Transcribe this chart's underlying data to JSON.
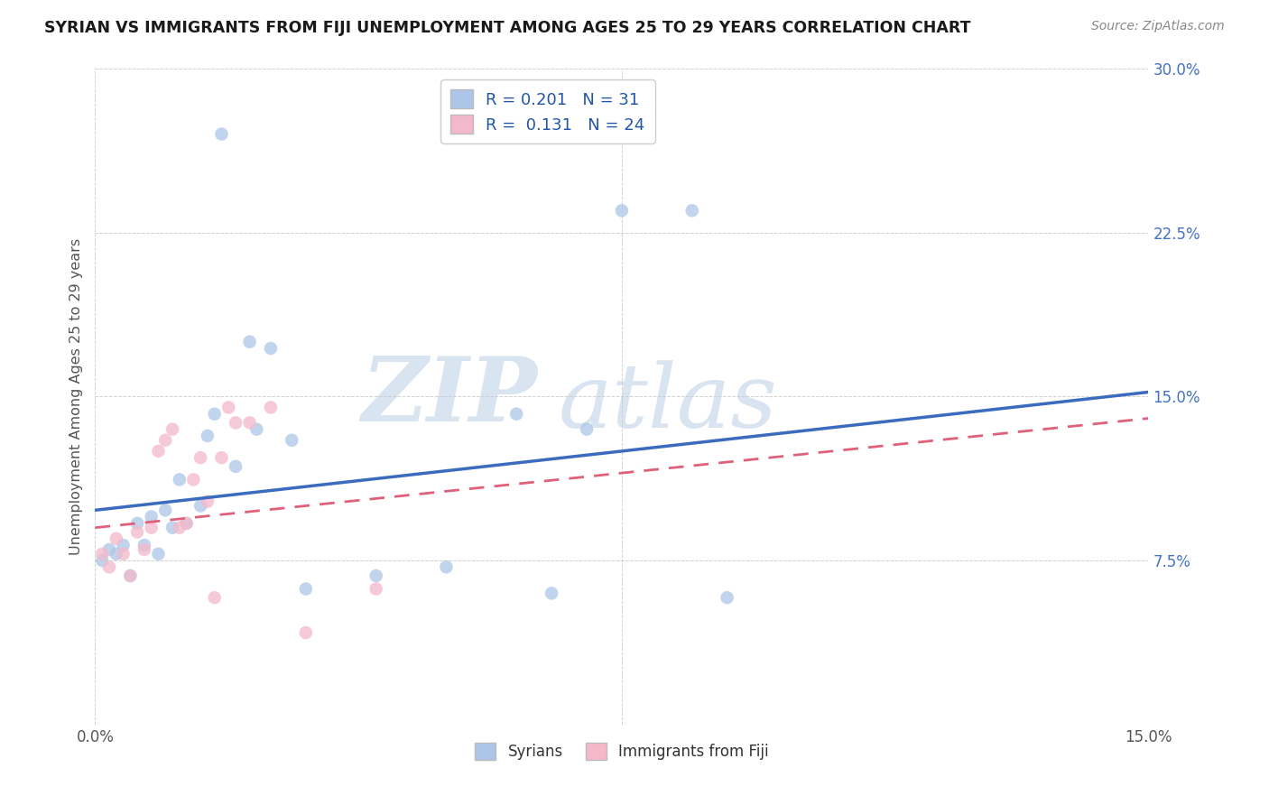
{
  "title": "SYRIAN VS IMMIGRANTS FROM FIJI UNEMPLOYMENT AMONG AGES 25 TO 29 YEARS CORRELATION CHART",
  "source": "Source: ZipAtlas.com",
  "ylabel": "Unemployment Among Ages 25 to 29 years",
  "xlim": [
    0.0,
    0.15
  ],
  "ylim": [
    0.0,
    0.3
  ],
  "legend_label1": "Syrians",
  "legend_label2": "Immigrants from Fiji",
  "r1": 0.201,
  "n1": 31,
  "r2": 0.131,
  "n2": 24,
  "color_syrian": "#adc6e8",
  "color_fiji": "#f4b8cb",
  "color_line1": "#3a6bbf",
  "color_line2": "#e0607a",
  "watermark_zip": "ZIP",
  "watermark_atlas": "atlas",
  "background_color": "#ffffff",
  "grid_color": "#cccccc",
  "syrians_x": [
    0.001,
    0.002,
    0.003,
    0.004,
    0.005,
    0.006,
    0.007,
    0.008,
    0.009,
    0.01,
    0.011,
    0.012,
    0.013,
    0.015,
    0.016,
    0.017,
    0.018,
    0.02,
    0.022,
    0.023,
    0.025,
    0.028,
    0.03,
    0.04,
    0.05,
    0.06,
    0.065,
    0.07,
    0.075,
    0.085,
    0.09
  ],
  "syrians_y": [
    0.075,
    0.08,
    0.078,
    0.082,
    0.068,
    0.092,
    0.082,
    0.095,
    0.078,
    0.098,
    0.09,
    0.112,
    0.092,
    0.1,
    0.132,
    0.142,
    0.27,
    0.118,
    0.175,
    0.135,
    0.172,
    0.13,
    0.062,
    0.068,
    0.072,
    0.142,
    0.06,
    0.135,
    0.235,
    0.235,
    0.058
  ],
  "fiji_x": [
    0.001,
    0.002,
    0.003,
    0.004,
    0.005,
    0.006,
    0.007,
    0.008,
    0.009,
    0.01,
    0.011,
    0.012,
    0.013,
    0.014,
    0.015,
    0.016,
    0.017,
    0.018,
    0.019,
    0.02,
    0.022,
    0.025,
    0.03,
    0.04
  ],
  "fiji_y": [
    0.078,
    0.072,
    0.085,
    0.078,
    0.068,
    0.088,
    0.08,
    0.09,
    0.125,
    0.13,
    0.135,
    0.09,
    0.092,
    0.112,
    0.122,
    0.102,
    0.058,
    0.122,
    0.145,
    0.138,
    0.138,
    0.145,
    0.042,
    0.062
  ],
  "line1_x0": 0.0,
  "line1_y0": 0.098,
  "line1_x1": 0.15,
  "line1_y1": 0.152,
  "line2_x0": 0.0,
  "line2_y0": 0.09,
  "line2_x1": 0.15,
  "line2_y1": 0.14
}
